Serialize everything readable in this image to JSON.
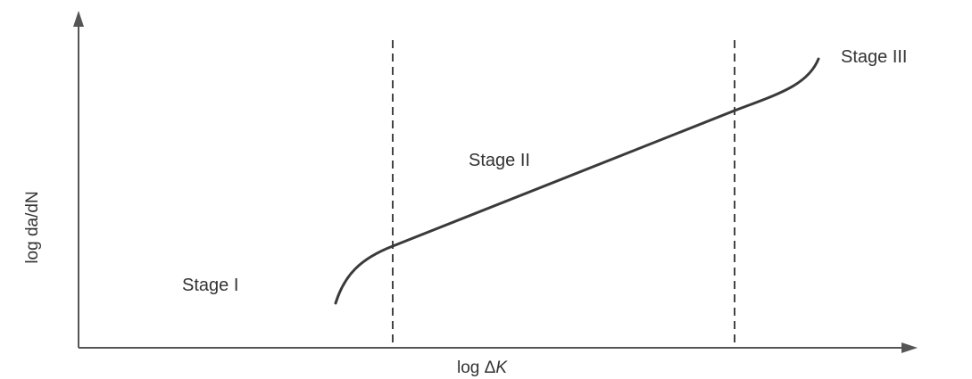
{
  "axes": {
    "x_label_prefix": "log Δ",
    "x_label_symbol": "K",
    "y_label": "log da/dN"
  },
  "stages": {
    "stage_1": "Stage I",
    "stage_2": "Stage II",
    "stage_3": "Stage III"
  },
  "colors": {
    "line": "#3a3a3a",
    "axis": "#555555",
    "text": "#333333"
  }
}
